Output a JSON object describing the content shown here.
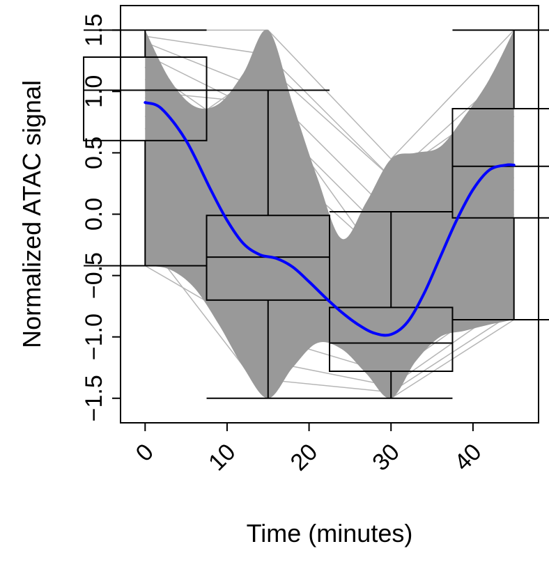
{
  "chart_data": {
    "type": "box",
    "title": "",
    "xlabel": "Time (minutes)",
    "ylabel": "Normalized ATAC signal",
    "xlim": [
      -3,
      48
    ],
    "ylim": [
      -1.7,
      1.7
    ],
    "x_ticks": [
      0,
      10,
      20,
      30,
      40
    ],
    "x_tick_labels": [
      "0",
      "10",
      "20",
      "30",
      "40"
    ],
    "y_ticks": [
      -1.5,
      -1.0,
      -0.5,
      0.0,
      0.5,
      1.0,
      1.5
    ],
    "y_tick_labels": [
      "−1.5",
      "−1.0",
      "−0.5",
      "0.0",
      "0.5",
      "1.0",
      "1.5"
    ],
    "grid": false,
    "legend": "none",
    "colors": {
      "traces": "#999999",
      "trend": "#0000ff",
      "box": "#000000"
    },
    "timepoints": [
      0,
      15,
      30,
      45
    ],
    "boxes": [
      {
        "x": 0,
        "whisker_low": -0.42,
        "q1": 0.6,
        "median": 1.01,
        "q3": 1.28,
        "whisker_high": 1.5
      },
      {
        "x": 15,
        "whisker_low": -1.5,
        "q1": -0.7,
        "median": -0.35,
        "q3": -0.01,
        "whisker_high": 1.01
      },
      {
        "x": 30,
        "whisker_low": -1.5,
        "q1": -1.28,
        "median": -1.05,
        "q3": -0.76,
        "whisker_high": 0.02
      },
      {
        "x": 45,
        "whisker_low": -0.86,
        "q1": -0.03,
        "median": 0.39,
        "q3": 0.86,
        "whisker_high": 1.5
      }
    ],
    "trend_line": {
      "x": [
        0,
        2,
        5,
        8,
        10,
        12,
        14,
        16,
        18,
        20,
        22,
        24,
        26,
        28,
        30,
        32,
        34,
        36,
        38,
        40,
        42,
        44,
        45
      ],
      "y": [
        0.91,
        0.86,
        0.6,
        0.2,
        -0.05,
        -0.24,
        -0.33,
        -0.36,
        -0.43,
        -0.55,
        -0.68,
        -0.8,
        -0.9,
        -0.97,
        -0.98,
        -0.88,
        -0.65,
        -0.35,
        -0.05,
        0.2,
        0.36,
        0.4,
        0.4
      ]
    },
    "envelope": {
      "upper": {
        "x": [
          0,
          3,
          6,
          9,
          12,
          15,
          18,
          21,
          24,
          27,
          30,
          33,
          36,
          39,
          42,
          45
        ],
        "y": [
          1.5,
          1.1,
          0.88,
          0.9,
          1.15,
          1.5,
          0.9,
          0.3,
          -0.2,
          0.1,
          0.45,
          0.5,
          0.55,
          0.8,
          1.1,
          1.5
        ]
      },
      "lower": {
        "x": [
          0,
          3,
          6,
          9,
          12,
          15,
          18,
          21,
          24,
          27,
          30,
          33,
          36,
          39,
          42,
          45
        ],
        "y": [
          -0.42,
          -0.45,
          -0.6,
          -0.9,
          -1.25,
          -1.5,
          -1.25,
          -1.05,
          -1.1,
          -1.3,
          -1.5,
          -1.2,
          -1.0,
          -0.95,
          -0.9,
          -0.86
        ]
      }
    },
    "trace_samples": [
      [
        1.5,
        1.5,
        0.45,
        1.5
      ],
      [
        1.45,
        1.3,
        0.3,
        1.2
      ],
      [
        1.4,
        1.0,
        0.0,
        0.9
      ],
      [
        1.3,
        0.8,
        -0.2,
        0.6
      ],
      [
        1.2,
        0.5,
        -0.4,
        0.4
      ],
      [
        1.1,
        0.2,
        -0.6,
        0.3
      ],
      [
        1.0,
        0.0,
        -0.8,
        0.2
      ],
      [
        0.95,
        -0.2,
        -0.9,
        0.0
      ],
      [
        0.9,
        -0.4,
        -1.0,
        -0.1
      ],
      [
        0.8,
        -0.6,
        -1.1,
        -0.3
      ],
      [
        0.7,
        -0.8,
        -1.2,
        -0.5
      ],
      [
        0.6,
        -1.0,
        -1.3,
        -0.6
      ],
      [
        0.4,
        -1.2,
        -1.4,
        -0.7
      ],
      [
        0.2,
        -1.35,
        -1.45,
        -0.8
      ],
      [
        -0.2,
        -1.5,
        -1.5,
        -0.86
      ],
      [
        -0.42,
        -1.0,
        0.2,
        0.5
      ],
      [
        0.5,
        1.2,
        0.3,
        1.0
      ],
      [
        1.0,
        0.9,
        -0.5,
        1.3
      ],
      [
        0.3,
        -0.5,
        -1.3,
        0.8
      ],
      [
        1.2,
        -1.2,
        -0.7,
        0.0
      ]
    ]
  }
}
